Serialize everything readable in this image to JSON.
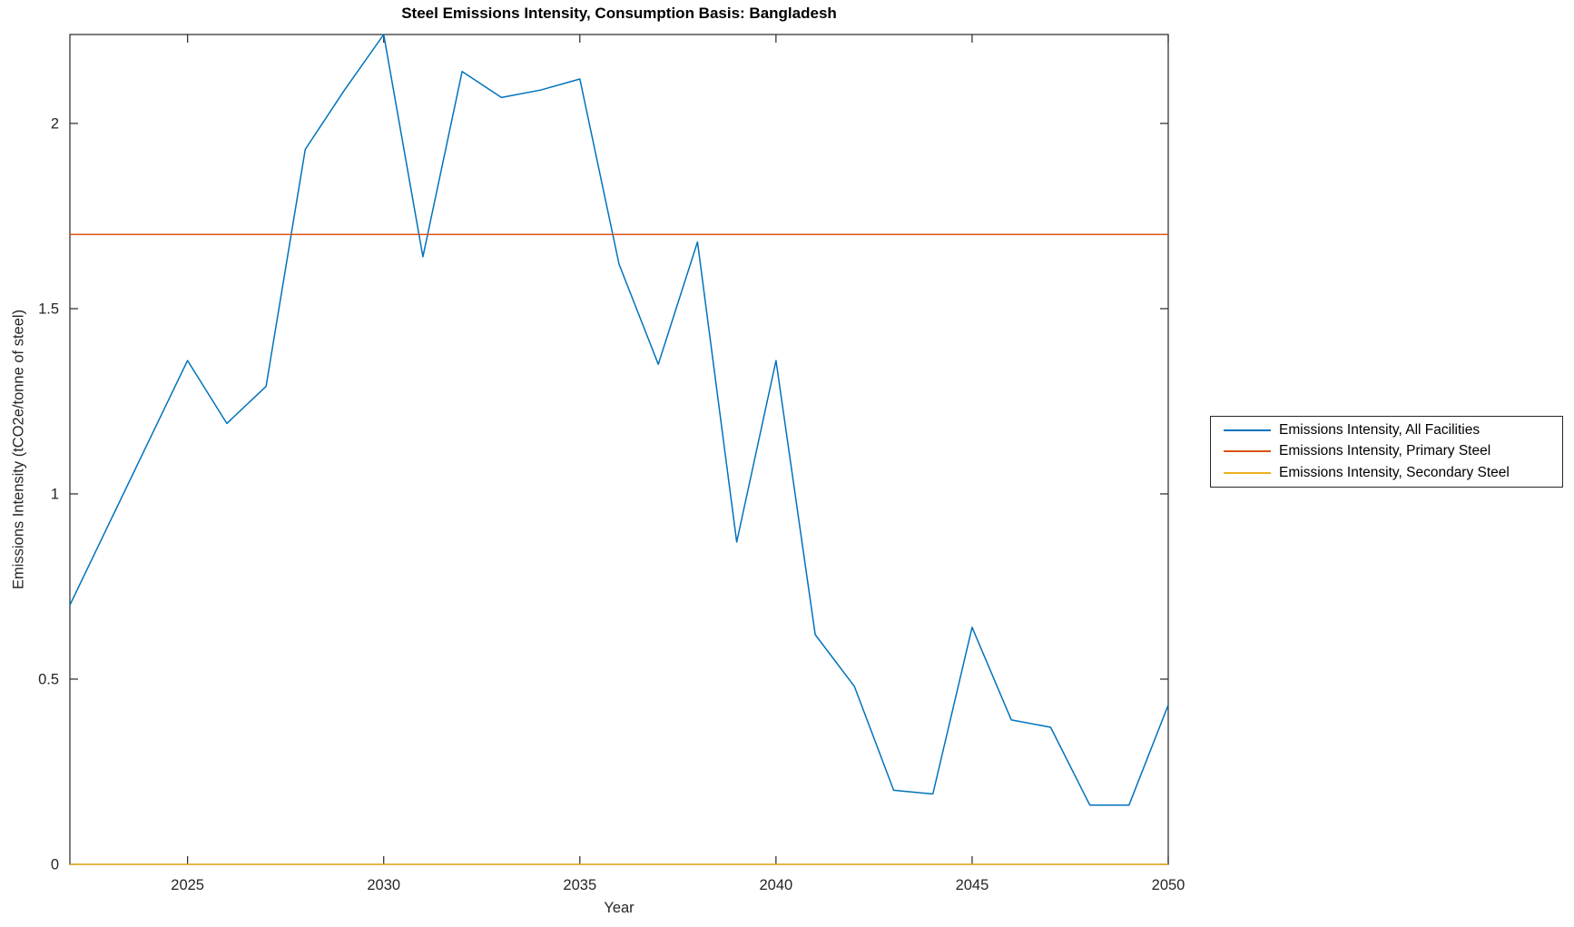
{
  "title": "Steel Emissions Intensity, Consumption Basis: Bangladesh",
  "axes": {
    "xlabel": "Year",
    "ylabel": "Emissions Intensity (tCO2e/tonne of steel)",
    "frame_color": "#262626",
    "tick_label_color": "#262626"
  },
  "legend": {
    "entries": [
      {
        "label": "Emissions Intensity, All Facilities",
        "color": "#0072BD"
      },
      {
        "label": "Emissions Intensity, Primary Steel",
        "color": "#D95319"
      },
      {
        "label": "Emissions Intensity, Secondary Steel",
        "color": "#EDB120"
      }
    ]
  },
  "chart_data": {
    "type": "line",
    "title": "Steel Emissions Intensity, Consumption Basis: Bangladesh",
    "xlabel": "Year",
    "ylabel": "Emissions Intensity (tCO2e/tonne of steel)",
    "xlim": [
      2022,
      2050
    ],
    "ylim": [
      0,
      2.24
    ],
    "xticks": [
      2025,
      2030,
      2035,
      2040,
      2045,
      2050
    ],
    "yticks": [
      0,
      0.5,
      1,
      1.5,
      2
    ],
    "grid": false,
    "legend_position": "right-outside",
    "x": [
      2022,
      2023,
      2024,
      2025,
      2026,
      2027,
      2028,
      2029,
      2030,
      2031,
      2032,
      2033,
      2034,
      2035,
      2036,
      2037,
      2038,
      2039,
      2040,
      2041,
      2042,
      2043,
      2044,
      2045,
      2046,
      2047,
      2048,
      2049,
      2050
    ],
    "series": [
      {
        "name": "Emissions Intensity, All Facilities",
        "color": "#0072BD",
        "values": [
          0.7,
          0.92,
          1.14,
          1.36,
          1.19,
          1.29,
          1.93,
          2.09,
          2.24,
          1.64,
          2.14,
          2.07,
          2.09,
          2.12,
          1.62,
          1.35,
          1.68,
          0.87,
          1.36,
          0.62,
          0.48,
          0.2,
          0.19,
          0.64,
          0.39,
          0.37,
          0.16,
          0.16,
          0.43
        ]
      },
      {
        "name": "Emissions Intensity, Primary Steel",
        "color": "#D95319",
        "constant": 1.7
      },
      {
        "name": "Emissions Intensity, Secondary Steel",
        "color": "#EDB120",
        "constant": 0
      }
    ]
  }
}
